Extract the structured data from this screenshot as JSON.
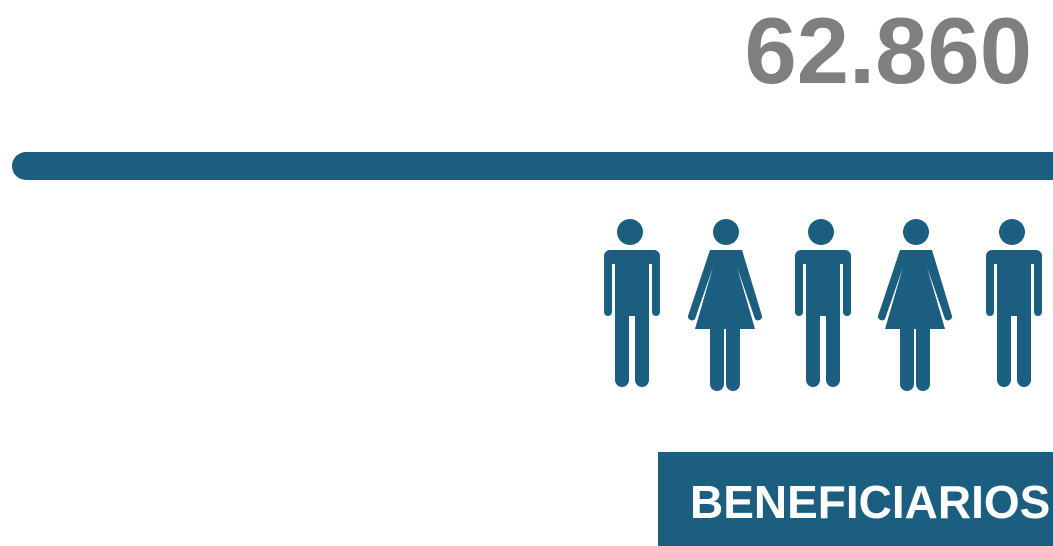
{
  "stat": {
    "value": "62.860",
    "label": "BENEFICIARIOS"
  }
}
